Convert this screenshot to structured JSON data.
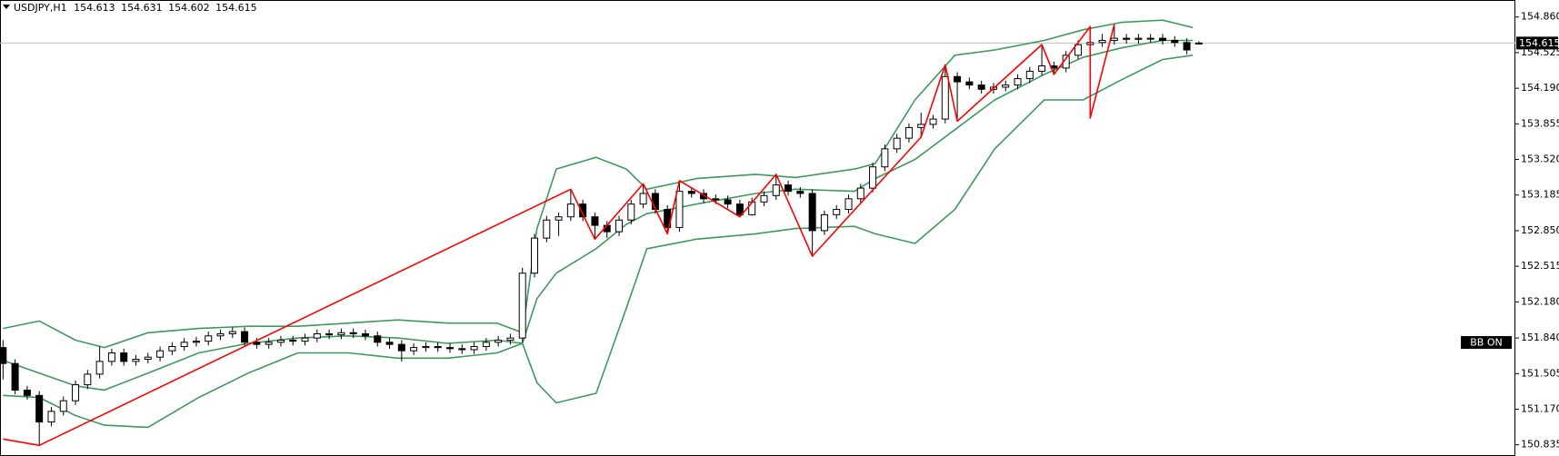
{
  "chart_data": {
    "type": "candlestick",
    "title": "USDJPY,H1",
    "indicator_label": "BB ON",
    "up_color": "#ffffff",
    "down_color": "#000000",
    "xlim": [
      -0.25,
      125.2
    ],
    "ylim": [
      150.73,
      155.02
    ],
    "yticks": [
      {
        "value": 154.86,
        "label": "154.860"
      },
      154.525,
      {
        "value": 154.19,
        "label": "154.190"
      },
      153.855,
      {
        "value": 153.52,
        "label": "153.520"
      },
      153.185,
      {
        "value": 152.85,
        "label": "152.850"
      },
      152.515,
      {
        "value": 152.18,
        "label": "152.180"
      },
      {
        "value": 151.84,
        "label": "151.840"
      },
      151.505,
      {
        "value": 151.17,
        "label": "151.170"
      },
      150.835
    ],
    "open": [
      151.75,
      151.6,
      151.35,
      151.3,
      151.05,
      151.15,
      151.25,
      151.4,
      151.5,
      151.62,
      151.7,
      151.62,
      151.64,
      151.66,
      151.72,
      151.76,
      151.8,
      151.81,
      151.86,
      151.88,
      151.9,
      151.8,
      151.78,
      151.8,
      151.82,
      151.81,
      151.84,
      151.88,
      151.87,
      151.89,
      151.88,
      151.86,
      151.8,
      151.78,
      151.72,
      151.75,
      151.76,
      151.75,
      151.74,
      151.73,
      151.76,
      151.8,
      151.82,
      151.84,
      152.45,
      152.78,
      152.95,
      152.98,
      153.1,
      152.98,
      152.9,
      152.84,
      152.95,
      153.1,
      153.2,
      153.05,
      152.88,
      153.22,
      153.2,
      153.15,
      153.14,
      153.1,
      153.0,
      153.12,
      153.18,
      153.28,
      153.22,
      153.2,
      152.85,
      153.0,
      153.05,
      153.15,
      153.25,
      153.45,
      153.62,
      153.72,
      153.82,
      153.85,
      153.9,
      154.3,
      154.25,
      154.22,
      154.18,
      154.2,
      154.22,
      154.28,
      154.35,
      154.4,
      154.38,
      154.5,
      154.6,
      154.62,
      154.64,
      154.66,
      154.65,
      154.66,
      154.66,
      154.64,
      154.62,
      154.613
    ],
    "high": [
      151.82,
      151.64,
      151.39,
      151.34,
      151.19,
      151.29,
      151.44,
      151.54,
      151.76,
      151.74,
      151.74,
      151.68,
      151.7,
      151.76,
      151.8,
      151.84,
      151.85,
      151.9,
      151.92,
      151.94,
      151.94,
      151.84,
      151.84,
      151.86,
      151.86,
      151.88,
      151.92,
      151.92,
      151.93,
      151.93,
      151.92,
      151.9,
      151.84,
      151.82,
      151.79,
      151.8,
      151.8,
      151.79,
      151.78,
      151.8,
      151.84,
      151.86,
      151.88,
      152.5,
      152.82,
      152.99,
      153.02,
      153.24,
      153.14,
      153.02,
      152.94,
      152.99,
      153.14,
      153.29,
      153.24,
      153.09,
      153.32,
      153.26,
      153.24,
      153.19,
      153.18,
      153.14,
      153.16,
      153.22,
      153.38,
      153.32,
      153.26,
      153.24,
      153.04,
      153.09,
      153.19,
      153.29,
      153.49,
      153.66,
      153.76,
      153.86,
      153.96,
      153.94,
      154.41,
      154.34,
      154.29,
      154.26,
      154.24,
      154.26,
      154.32,
      154.39,
      154.6,
      154.44,
      154.54,
      154.64,
      154.77,
      154.7,
      154.79,
      154.7,
      154.7,
      154.7,
      154.7,
      154.68,
      154.66,
      154.631
    ],
    "low": [
      151.45,
      151.31,
      151.26,
      150.83,
      151.01,
      151.11,
      151.21,
      151.36,
      151.46,
      151.58,
      151.58,
      151.58,
      151.6,
      151.62,
      151.68,
      151.72,
      151.76,
      151.77,
      151.82,
      151.84,
      151.76,
      151.74,
      151.74,
      151.76,
      151.77,
      151.77,
      151.8,
      151.83,
      151.83,
      151.84,
      151.82,
      151.76,
      151.74,
      151.62,
      151.68,
      151.71,
      151.71,
      151.7,
      151.69,
      151.69,
      151.72,
      151.76,
      151.78,
      151.8,
      152.41,
      152.74,
      152.8,
      152.94,
      152.94,
      152.77,
      152.78,
      152.8,
      152.91,
      153.06,
      153.01,
      152.82,
      152.84,
      153.16,
      153.11,
      153.1,
      153.06,
      152.98,
      152.99,
      153.08,
      153.14,
      153.18,
      153.16,
      152.61,
      152.81,
      152.96,
      153.01,
      153.11,
      153.21,
      153.41,
      153.58,
      153.68,
      153.73,
      153.81,
      153.86,
      153.88,
      154.18,
      154.14,
      154.14,
      154.16,
      154.18,
      154.24,
      154.31,
      154.32,
      154.34,
      154.46,
      153.91,
      154.58,
      154.6,
      154.61,
      154.61,
      154.62,
      154.6,
      154.58,
      154.51,
      154.602
    ],
    "close": [
      151.6,
      151.35,
      151.3,
      151.05,
      151.15,
      151.25,
      151.4,
      151.5,
      151.62,
      151.7,
      151.62,
      151.64,
      151.66,
      151.72,
      151.76,
      151.8,
      151.81,
      151.86,
      151.88,
      151.9,
      151.8,
      151.78,
      151.8,
      151.82,
      151.81,
      151.84,
      151.88,
      151.87,
      151.89,
      151.88,
      151.86,
      151.8,
      151.78,
      151.72,
      151.75,
      151.76,
      151.75,
      151.74,
      151.73,
      151.76,
      151.8,
      151.82,
      151.84,
      152.45,
      152.78,
      152.95,
      152.98,
      153.1,
      152.98,
      152.9,
      152.84,
      152.95,
      153.1,
      153.2,
      153.05,
      152.88,
      153.22,
      153.2,
      153.15,
      153.14,
      153.1,
      153.0,
      153.12,
      153.18,
      153.28,
      153.22,
      153.2,
      152.85,
      153.0,
      153.05,
      153.15,
      153.25,
      153.45,
      153.62,
      153.72,
      153.82,
      153.85,
      153.9,
      154.3,
      154.25,
      154.22,
      154.18,
      154.2,
      154.22,
      154.28,
      154.35,
      154.4,
      154.38,
      154.5,
      154.6,
      154.62,
      154.64,
      154.66,
      154.65,
      154.66,
      154.66,
      154.64,
      154.62,
      154.55,
      154.615
    ],
    "bands": {
      "color": "#3d9a5c",
      "x": [
        0,
        3,
        6,
        8.4,
        12,
        16.2,
        20.3,
        24.4,
        28.6,
        32.7,
        36.8,
        40.9,
        43,
        44.2,
        45.8,
        49.1,
        51.6,
        53.3,
        57.4,
        62.3,
        65.6,
        70.5,
        72.2,
        75.5,
        78.8,
        82.1,
        86.2,
        89.4,
        92.6,
        96,
        98.5
      ],
      "upper": [
        151.93,
        152.0,
        151.82,
        151.75,
        151.89,
        151.93,
        151.95,
        151.95,
        151.98,
        152.01,
        151.98,
        151.98,
        151.89,
        152.87,
        153.43,
        153.54,
        153.43,
        153.24,
        153.34,
        153.38,
        153.35,
        153.43,
        153.48,
        154.08,
        154.5,
        154.55,
        154.64,
        154.74,
        154.81,
        154.83,
        154.76
      ],
      "middle": [
        151.63,
        151.51,
        151.39,
        151.35,
        151.51,
        151.7,
        151.79,
        151.84,
        151.86,
        151.84,
        151.79,
        151.82,
        151.79,
        152.21,
        152.45,
        152.68,
        152.91,
        153.01,
        153.1,
        153.2,
        153.24,
        153.22,
        153.34,
        153.52,
        153.8,
        154.08,
        154.32,
        154.48,
        154.57,
        154.64,
        154.64
      ],
      "lower": [
        151.3,
        151.28,
        151.11,
        151.02,
        151.0,
        151.28,
        151.51,
        151.7,
        151.7,
        151.65,
        151.65,
        151.7,
        151.79,
        151.42,
        151.23,
        151.32,
        152.12,
        152.68,
        152.77,
        152.82,
        152.87,
        152.89,
        152.82,
        152.73,
        153.05,
        153.62,
        154.08,
        154.08,
        154.27,
        154.46,
        154.5
      ]
    },
    "zigzag": {
      "color": "#ff0000",
      "x": [
        0,
        3,
        47,
        49,
        53,
        55,
        56,
        61,
        64,
        67,
        76,
        78,
        79,
        86,
        87,
        90,
        90,
        92
      ],
      "values": [
        150.89,
        150.83,
        153.24,
        152.77,
        153.29,
        152.82,
        153.32,
        152.98,
        153.38,
        152.61,
        153.73,
        154.41,
        153.88,
        154.6,
        154.32,
        154.77,
        153.91,
        154.79
      ]
    }
  }
}
